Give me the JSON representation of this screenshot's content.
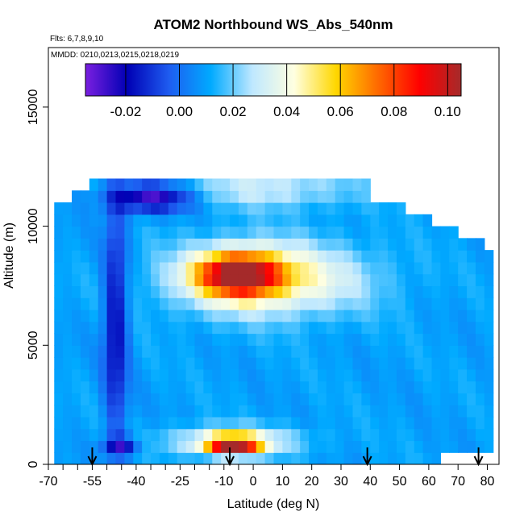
{
  "chart_data": {
    "type": "heatmap",
    "title": "ATOM2 Northbound WS_Abs_540nm",
    "flights_note": "Flts: 6,7,8,9,10",
    "mmdd_note": "MMDD: 0210,0213,0215,0218,0219",
    "xlabel": "Latitude (deg N)",
    "ylabel": "Altitude (m)",
    "xlim": [
      -70,
      84
    ],
    "ylim": [
      0,
      17500
    ],
    "x_ticks": [
      -70,
      -55,
      -40,
      -25,
      -10,
      0,
      10,
      20,
      30,
      40,
      50,
      60,
      70,
      80
    ],
    "x_tick_labels": [
      "-70",
      "-55",
      "-40",
      "-25",
      "-10",
      "0",
      "10",
      "20",
      "30",
      "40",
      "50",
      "60",
      "70",
      "80"
    ],
    "x_minor_ticks": [
      -65,
      -60,
      -50,
      -45,
      -35,
      -30,
      -20,
      -15,
      -5
    ],
    "y_ticks": [
      0,
      5000,
      10000,
      15000
    ],
    "y_tick_labels": [
      "0",
      "5000",
      "10000",
      "15000"
    ],
    "colorbar": {
      "range": [
        -0.035,
        0.105
      ],
      "ticks": [
        -0.02,
        0.0,
        0.02,
        0.04,
        0.06,
        0.08,
        0.1
      ],
      "tick_labels": [
        "-0.02",
        "0.00",
        "0.02",
        "0.04",
        "0.06",
        "0.08",
        "0.10"
      ],
      "colors": [
        "#7a1fe0",
        "#0000b4",
        "#1e5cf0",
        "#00aaff",
        "#bfe8ff",
        "#ffffe0",
        "#ffd700",
        "#ff6a00",
        "#ff0000",
        "#a52a2a"
      ]
    },
    "arrows_latitudes": [
      -55,
      -8,
      39,
      77
    ],
    "latitude_bins": [
      -68,
      -65,
      -62,
      -59,
      -56,
      -53,
      -50,
      -47,
      -44,
      -41,
      -38,
      -35,
      -32,
      -29,
      -26,
      -23,
      -20,
      -17,
      -14,
      -11,
      -8,
      -5,
      -2,
      1,
      4,
      7,
      10,
      13,
      16,
      19,
      22,
      25,
      28,
      31,
      34,
      37,
      40,
      43,
      46,
      49,
      52,
      55,
      58,
      61,
      64,
      67,
      70,
      73,
      76,
      79
    ],
    "altitude_bins": [
      0,
      500,
      1000,
      1500,
      2000,
      2500,
      3000,
      3500,
      4000,
      4500,
      5000,
      5500,
      6000,
      6500,
      7000,
      7500,
      8000,
      8500,
      9000,
      9500,
      10000,
      10500,
      11000,
      11500
    ],
    "lat_max_by_altitude": [
      61,
      79,
      79,
      79,
      79,
      79,
      79,
      79,
      79,
      79,
      79,
      79,
      79,
      79,
      79,
      79,
      79,
      79,
      76,
      67,
      58,
      49,
      37,
      37
    ],
    "lat_min_by_altitude": [
      -68,
      -68,
      -68,
      -68,
      -68,
      -68,
      -68,
      -68,
      -68,
      -68,
      -68,
      -68,
      -68,
      -68,
      -68,
      -68,
      -68,
      -68,
      -68,
      -68,
      -68,
      -68,
      -62,
      -56
    ],
    "background_value": 0.01,
    "features": [
      {
        "name": "southern negative column",
        "lat": -47,
        "alt": 6000,
        "lat_width": 4,
        "alt_width": 5000,
        "value": -0.02
      },
      {
        "name": "upper negative band",
        "lat": -35,
        "alt": 11200,
        "lat_width": 14,
        "alt_width": 600,
        "value": -0.03
      },
      {
        "name": "mid-troposphere plume",
        "lat": -5,
        "alt": 8000,
        "lat_width": 14,
        "alt_width": 900,
        "value": 0.09
      },
      {
        "name": "mid-troposphere halo",
        "lat": 5,
        "alt": 7800,
        "lat_width": 32,
        "alt_width": 1500,
        "value": 0.05
      },
      {
        "name": "boundary layer plume",
        "lat": -7,
        "alt": 800,
        "lat_width": 9,
        "alt_width": 400,
        "value": 0.09
      },
      {
        "name": "boundary layer halo",
        "lat": -7,
        "alt": 1000,
        "lat_width": 22,
        "alt_width": 600,
        "value": 0.04
      },
      {
        "name": "near-surface negative",
        "lat": -45,
        "alt": 800,
        "lat_width": 6,
        "alt_width": 400,
        "value": -0.02
      },
      {
        "name": "upper light band",
        "lat": 5,
        "alt": 11600,
        "lat_width": 30,
        "alt_width": 800,
        "value": 0.03
      }
    ]
  }
}
